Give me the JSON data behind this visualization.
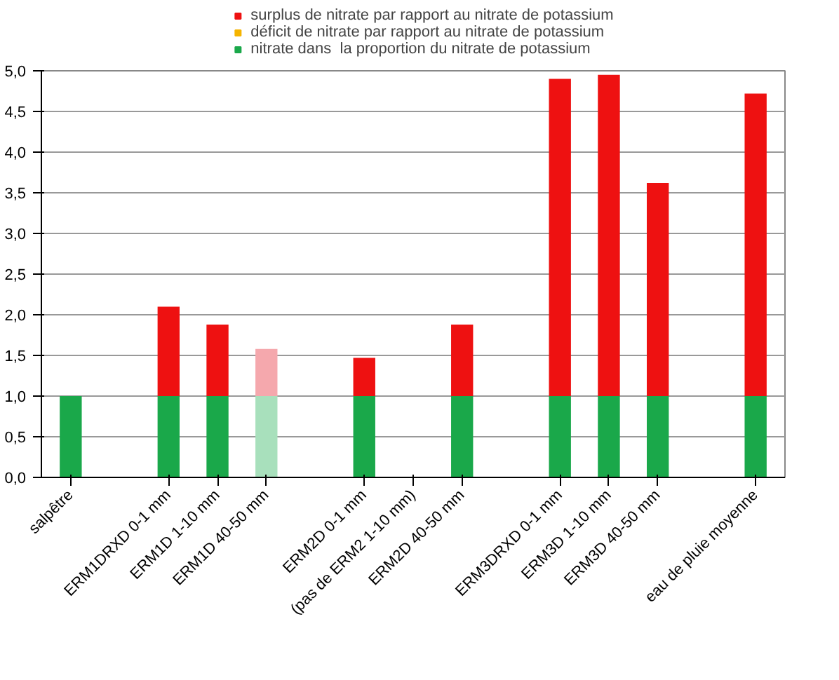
{
  "chart_data": {
    "type": "bar",
    "stacked": true,
    "categories": [
      "salpêtre",
      null,
      "ERM1DRXD 0-1 mm",
      "ERM1D 1-10 mm",
      "ERM1D 40-50 mm",
      null,
      "ERM2D 0-1 mm",
      "(pas de ERM2 1-10 mm)",
      "ERM2D 40-50 mm",
      null,
      "ERM3DRXD 0-1 mm",
      "ERM3D 1-10 mm",
      "ERM3D 40-50 mm",
      null,
      "eau de pluie moyenne"
    ],
    "series": [
      {
        "name": "nitrate dans  la proportion du nitrate de potassium",
        "color": "#1aa84a",
        "colors": [
          "#1aa84a",
          null,
          "#1aa84a",
          "#1aa84a",
          "#a8e0bc",
          null,
          "#1aa84a",
          null,
          "#1aa84a",
          null,
          "#1aa84a",
          "#1aa84a",
          "#1aa84a",
          null,
          "#1aa84a"
        ],
        "values": [
          1.0,
          null,
          1.0,
          1.0,
          1.0,
          null,
          1.0,
          null,
          1.0,
          null,
          1.0,
          1.0,
          1.0,
          null,
          1.0
        ]
      },
      {
        "name": "déficit de nitrate par rapport au nitrate de potassium",
        "color": "#f5b400",
        "values": [
          null,
          null,
          null,
          null,
          null,
          null,
          null,
          null,
          null,
          null,
          null,
          null,
          null,
          null,
          null
        ]
      },
      {
        "name": "surplus de nitrate par rapport au nitrate de potassium",
        "color": "#ee1111",
        "colors": [
          null,
          null,
          "#ee1111",
          "#ee1111",
          "#f5a8ad",
          null,
          "#ee1111",
          null,
          "#ee1111",
          null,
          "#ee1111",
          "#ee1111",
          "#ee1111",
          null,
          "#ee1111"
        ],
        "values": [
          null,
          null,
          1.1,
          0.88,
          0.58,
          null,
          0.47,
          null,
          0.88,
          null,
          3.9,
          3.95,
          2.62,
          null,
          3.72
        ]
      }
    ],
    "ylim": [
      0,
      5
    ],
    "yticks": [
      {
        "value": 0,
        "label": "0,0"
      },
      {
        "value": 0.5,
        "label": "0,5"
      },
      {
        "value": 1,
        "label": "1,0"
      },
      {
        "value": 1.5,
        "label": "1,5"
      },
      {
        "value": 2,
        "label": "2,0"
      },
      {
        "value": 2.5,
        "label": "2,5"
      },
      {
        "value": 3,
        "label": "3,0"
      },
      {
        "value": 3.5,
        "label": "3,5"
      },
      {
        "value": 4,
        "label": "4,0"
      },
      {
        "value": 4.5,
        "label": "4,5"
      },
      {
        "value": 5,
        "label": "5,0"
      }
    ],
    "grid": "y",
    "legend": "top"
  }
}
